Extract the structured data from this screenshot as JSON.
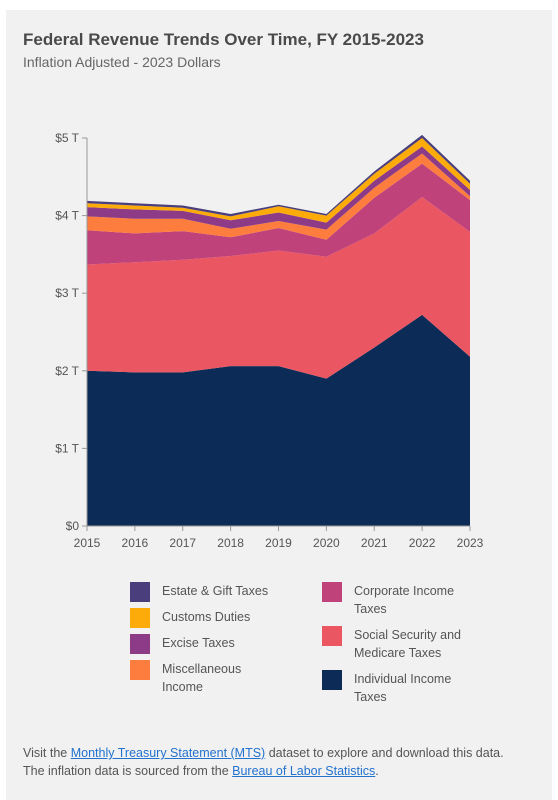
{
  "title": "Federal Revenue Trends Over Time, FY 2015-2023",
  "subtitle": "Inflation Adjusted - 2023 Dollars",
  "chart_data": {
    "type": "area",
    "stacked": true,
    "x": [
      "2015",
      "2016",
      "2017",
      "2018",
      "2019",
      "2020",
      "2021",
      "2022",
      "2023"
    ],
    "ylim": [
      0,
      5
    ],
    "yticks": [
      0,
      1,
      2,
      3,
      4,
      5
    ],
    "ytick_labels": [
      "$0",
      "$1 T",
      "$2 T",
      "$3 T",
      "$4 T",
      "$5 T"
    ],
    "grid": false,
    "series": [
      {
        "name": "Individual Income Taxes",
        "color": "#0c2c57",
        "values": [
          2.0,
          1.98,
          1.98,
          2.06,
          2.06,
          1.9,
          2.3,
          2.72,
          2.18
        ]
      },
      {
        "name": "Social Security and Medicare Taxes",
        "color": "#ea5662",
        "values": [
          1.37,
          1.42,
          1.45,
          1.42,
          1.49,
          1.57,
          1.47,
          1.52,
          1.61
        ]
      },
      {
        "name": "Corporate Income Taxes",
        "color": "#c0427a",
        "values": [
          0.44,
          0.37,
          0.37,
          0.24,
          0.29,
          0.22,
          0.46,
          0.43,
          0.41
        ]
      },
      {
        "name": "Miscellaneous Income",
        "color": "#fd7d3e",
        "values": [
          0.18,
          0.19,
          0.16,
          0.11,
          0.09,
          0.13,
          0.13,
          0.13,
          0.05
        ]
      },
      {
        "name": "Excise Taxes",
        "color": "#8d3b87",
        "values": [
          0.12,
          0.12,
          0.1,
          0.11,
          0.11,
          0.09,
          0.09,
          0.09,
          0.08
        ]
      },
      {
        "name": "Customs Duties",
        "color": "#fdab09",
        "values": [
          0.05,
          0.05,
          0.04,
          0.05,
          0.08,
          0.09,
          0.09,
          0.11,
          0.08
        ]
      },
      {
        "name": "Estate & Gift Taxes",
        "color": "#4a3f7c",
        "values": [
          0.03,
          0.03,
          0.03,
          0.03,
          0.02,
          0.02,
          0.03,
          0.04,
          0.04
        ]
      }
    ]
  },
  "legend": [
    {
      "label": "Estate & Gift Taxes",
      "color": "#4a3f7c"
    },
    {
      "label": "Customs Duties",
      "color": "#fdab09"
    },
    {
      "label": "Excise Taxes",
      "color": "#8d3b87"
    },
    {
      "label": "Miscellaneous Income",
      "color": "#fd7d3e"
    },
    {
      "label": "Corporate Income Taxes",
      "color": "#c0427a"
    },
    {
      "label": "Social Security and Medicare Taxes",
      "color": "#ea5662"
    },
    {
      "label": "Individual Income Taxes",
      "color": "#0c2c57"
    }
  ],
  "footer": {
    "line1_prefix": "Visit the ",
    "mts_link": "Monthly Treasury Statement (MTS)",
    "line1_suffix": " dataset to explore and download this data.",
    "line2_prefix": "The inflation data is sourced from the ",
    "bls_link": "Bureau of Labor Statistics",
    "line2_suffix": "."
  }
}
